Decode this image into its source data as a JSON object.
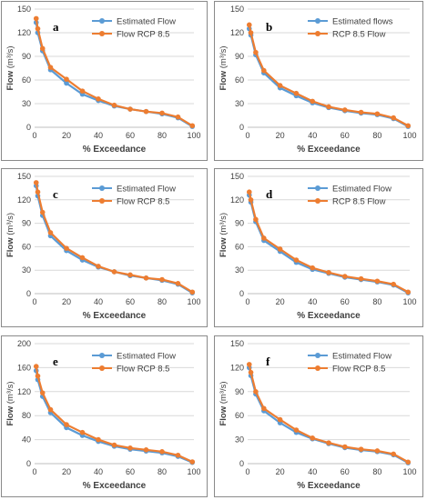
{
  "colors": {
    "estimated": "#5b9bd5",
    "rcp": "#ed7d31",
    "grid": "#d9d9d9"
  },
  "chart_data": [
    {
      "type": "line",
      "panel_label": "a",
      "xlabel": "% Exceedance",
      "ylabel_main": "Flow",
      "ylabel_unit": "(m³/s)",
      "xlim": [
        0,
        100
      ],
      "ylim": [
        0,
        150
      ],
      "xticks": [
        "0",
        "20",
        "40",
        "60",
        "80",
        "100"
      ],
      "yticks": [
        "0",
        "30",
        "60",
        "90",
        "120",
        "150"
      ],
      "legend_position": "top-right",
      "series": [
        {
          "name": "Estimated Flow",
          "x": [
            1,
            2,
            5,
            10,
            20,
            30,
            40,
            50,
            60,
            70,
            80,
            90,
            99
          ],
          "y": [
            133,
            120,
            97,
            73,
            56,
            42,
            34,
            27,
            23,
            20,
            17,
            12,
            1
          ]
        },
        {
          "name": "Flow RCP 8.5",
          "x": [
            1,
            2,
            5,
            10,
            20,
            30,
            40,
            50,
            60,
            70,
            80,
            90,
            99
          ],
          "y": [
            138,
            125,
            100,
            76,
            61,
            46,
            36,
            28,
            23,
            20,
            18,
            13,
            2
          ]
        }
      ]
    },
    {
      "type": "line",
      "panel_label": "b",
      "xlabel": "% Exceedance",
      "ylabel_main": "Flow",
      "ylabel_unit": "(m³/s)",
      "xlim": [
        0,
        100
      ],
      "ylim": [
        0,
        150
      ],
      "xticks": [
        "0",
        "20",
        "40",
        "60",
        "80",
        "100"
      ],
      "yticks": [
        "0",
        "30",
        "60",
        "90",
        "120",
        "150"
      ],
      "legend_position": "top-right",
      "series": [
        {
          "name": "Estimated flows",
          "x": [
            1,
            2,
            5,
            10,
            20,
            30,
            40,
            50,
            60,
            70,
            80,
            90,
            99
          ],
          "y": [
            125,
            117,
            92,
            69,
            50,
            40,
            31,
            25,
            21,
            18,
            16,
            11,
            1
          ]
        },
        {
          "name": "RCP 8.5  Flow",
          "x": [
            1,
            2,
            5,
            10,
            20,
            30,
            40,
            50,
            60,
            70,
            80,
            90,
            99
          ],
          "y": [
            130,
            120,
            95,
            72,
            53,
            43,
            33,
            26,
            22,
            19,
            17,
            12,
            2
          ]
        }
      ]
    },
    {
      "type": "line",
      "panel_label": "c",
      "xlabel": "% Exceedance",
      "ylabel_main": "Flow",
      "ylabel_unit": "(m³/s)",
      "xlim": [
        0,
        100
      ],
      "ylim": [
        0,
        150
      ],
      "xticks": [
        "0",
        "20",
        "40",
        "60",
        "80",
        "100"
      ],
      "yticks": [
        "0",
        "30",
        "60",
        "90",
        "120",
        "150"
      ],
      "legend_position": "top-right",
      "series": [
        {
          "name": "Estimated Flow",
          "x": [
            1,
            2,
            5,
            10,
            20,
            30,
            40,
            50,
            60,
            70,
            80,
            90,
            99
          ],
          "y": [
            138,
            125,
            100,
            74,
            55,
            43,
            34,
            28,
            23,
            20,
            17,
            12,
            1
          ]
        },
        {
          "name": "Flow RCP 8.5",
          "x": [
            1,
            2,
            5,
            10,
            20,
            30,
            40,
            50,
            60,
            70,
            80,
            90,
            99
          ],
          "y": [
            142,
            130,
            104,
            78,
            58,
            46,
            35,
            28,
            24,
            20,
            18,
            13,
            2
          ]
        }
      ]
    },
    {
      "type": "line",
      "panel_label": "d",
      "xlabel": "% Exceedance",
      "ylabel_main": "Flow",
      "ylabel_unit": "(m³/s)",
      "xlim": [
        0,
        100
      ],
      "ylim": [
        0,
        150
      ],
      "xticks": [
        "0",
        "20",
        "40",
        "60",
        "80",
        "100"
      ],
      "yticks": [
        "0",
        "30",
        "60",
        "90",
        "120",
        "150"
      ],
      "legend_position": "top-right",
      "series": [
        {
          "name": "Estimated Flow",
          "x": [
            1,
            2,
            5,
            10,
            20,
            30,
            40,
            50,
            60,
            70,
            80,
            90,
            99
          ],
          "y": [
            126,
            117,
            92,
            68,
            54,
            40,
            31,
            26,
            21,
            18,
            15,
            11,
            1
          ]
        },
        {
          "name": "RCP 8.5 Flow",
          "x": [
            1,
            2,
            5,
            10,
            20,
            30,
            40,
            50,
            60,
            70,
            80,
            90,
            99
          ],
          "y": [
            130,
            120,
            95,
            71,
            57,
            43,
            33,
            27,
            22,
            19,
            16,
            12,
            2
          ]
        }
      ]
    },
    {
      "type": "line",
      "panel_label": "e",
      "xlabel": "% Exceedance",
      "ylabel_main": "Flow",
      "ylabel_unit": "(m³/s)",
      "xlim": [
        0,
        100
      ],
      "ylim": [
        0,
        200
      ],
      "xticks": [
        "0",
        "20",
        "40",
        "60",
        "80",
        "100"
      ],
      "yticks": [
        "0",
        "40",
        "80",
        "120",
        "160",
        "200"
      ],
      "legend_position": "top-right",
      "series": [
        {
          "name": "Estimated Flow",
          "x": [
            1,
            2,
            5,
            10,
            20,
            30,
            40,
            50,
            60,
            70,
            80,
            90,
            99
          ],
          "y": [
            155,
            140,
            112,
            85,
            60,
            47,
            37,
            29,
            24,
            21,
            18,
            12,
            2
          ]
        },
        {
          "name": "Flow RCP 8.5",
          "x": [
            1,
            2,
            5,
            10,
            20,
            30,
            40,
            50,
            60,
            70,
            80,
            90,
            99
          ],
          "y": [
            162,
            146,
            118,
            90,
            65,
            52,
            40,
            31,
            26,
            23,
            20,
            14,
            3
          ]
        }
      ]
    },
    {
      "type": "line",
      "panel_label": "f",
      "xlabel": "% Exceedance",
      "ylabel_main": "Flow",
      "ylabel_unit": "(m³/s)",
      "xlim": [
        0,
        100
      ],
      "ylim": [
        0,
        150
      ],
      "xticks": [
        "0",
        "20",
        "40",
        "60",
        "80",
        "100"
      ],
      "yticks": [
        "0",
        "30",
        "60",
        "90",
        "120",
        "150"
      ],
      "legend_position": "top-right",
      "series": [
        {
          "name": "Estimated Flow",
          "x": [
            1,
            2,
            5,
            10,
            20,
            30,
            40,
            50,
            60,
            70,
            80,
            90,
            99
          ],
          "y": [
            120,
            110,
            87,
            66,
            51,
            39,
            31,
            25,
            20,
            17,
            15,
            11,
            1
          ]
        },
        {
          "name": "Flow RCP 8.5",
          "x": [
            1,
            2,
            5,
            10,
            20,
            30,
            40,
            50,
            60,
            70,
            80,
            90,
            99
          ],
          "y": [
            124,
            114,
            90,
            69,
            55,
            42,
            32,
            26,
            21,
            18,
            16,
            12,
            2
          ]
        }
      ]
    }
  ]
}
